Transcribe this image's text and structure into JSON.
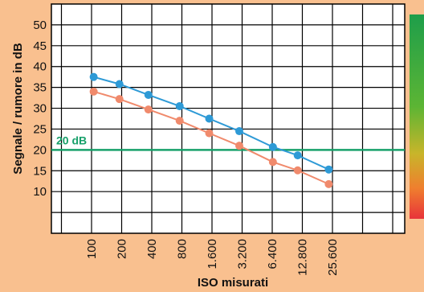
{
  "chart_data": {
    "type": "line",
    "title": "",
    "xlabel": "ISO misurati",
    "ylabel": "Segnale / rumore in dB",
    "categories": [
      "100",
      "200",
      "400",
      "800",
      "1.600",
      "3.200",
      "6.400",
      "12.800",
      "25.600"
    ],
    "ylim": [
      0,
      55
    ],
    "yticks": [
      "10",
      "15",
      "20",
      "25",
      "30",
      "35",
      "40",
      "45",
      "50"
    ],
    "grid": true,
    "series": [
      {
        "color": "#2e9ad6",
        "x": [
          105,
          190,
          370,
          760,
          1500,
          3000,
          6500,
          11500,
          23500
        ],
        "values": [
          37.5,
          35.8,
          33.2,
          30.5,
          27.5,
          24.5,
          20.7,
          18.7,
          15.3
        ]
      },
      {
        "color": "#f08a6c",
        "x": [
          105,
          190,
          370,
          760,
          1500,
          3000,
          6500,
          11500,
          23500
        ],
        "values": [
          34.0,
          32.2,
          29.7,
          27.0,
          24.0,
          21.0,
          17.1,
          15.1,
          11.8
        ]
      }
    ],
    "reference_line": {
      "value": 20,
      "label": "20 dB",
      "color": "#17a06a"
    },
    "colors": {
      "background": "#f9c08f",
      "plot_background": "#ffffff",
      "grid": "#000000"
    }
  }
}
